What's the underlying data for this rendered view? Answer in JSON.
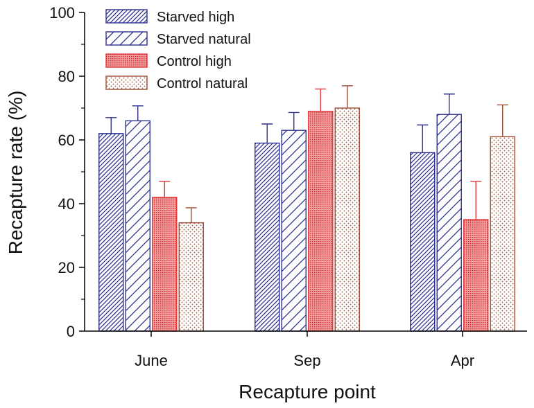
{
  "chart_data": {
    "type": "bar",
    "title": "",
    "xlabel": "Recapture point",
    "ylabel": "Recapture rate (%)",
    "ylim": [
      0,
      100
    ],
    "yticks": [
      0,
      20,
      40,
      60,
      80,
      100
    ],
    "grid": false,
    "legend_position": "top-left",
    "categories": [
      "June",
      "Sep",
      "Apr"
    ],
    "series": [
      {
        "name": "Starved high",
        "values": [
          62,
          59,
          56
        ],
        "errors": [
          5,
          6,
          8.7
        ],
        "color": "#2b2f8f",
        "pattern": "dense-diagonal"
      },
      {
        "name": "Starved natural",
        "values": [
          66,
          63,
          68
        ],
        "errors": [
          4.7,
          5.6,
          6.4
        ],
        "color": "#2b2f8f",
        "pattern": "wide-diagonal"
      },
      {
        "name": "Control high",
        "values": [
          42,
          69,
          35
        ],
        "errors": [
          5,
          7,
          12
        ],
        "color": "#e0363a",
        "pattern": "dense-dots"
      },
      {
        "name": "Control natural",
        "values": [
          34,
          70,
          61
        ],
        "errors": [
          4.7,
          7,
          10
        ],
        "color": "#9c4a2e",
        "pattern": "sparse-dots"
      }
    ]
  }
}
